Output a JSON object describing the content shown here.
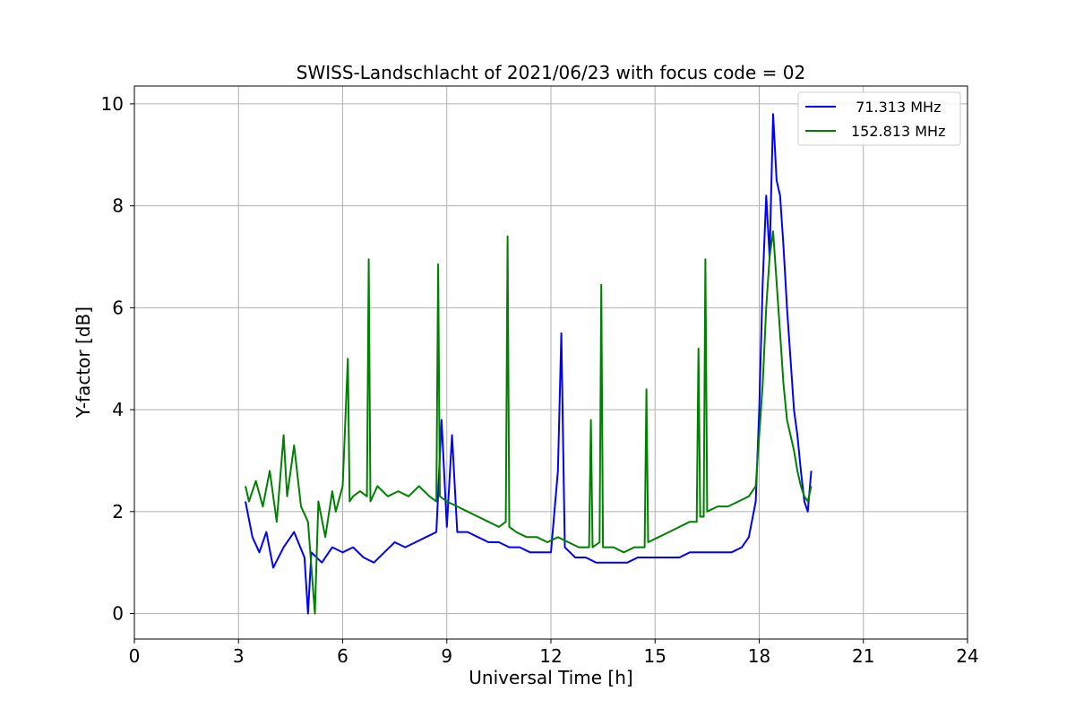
{
  "chart_data": {
    "type": "line",
    "title": "SWISS-Landschlacht of 2021/06/23 with focus code = 02",
    "xlabel": "Universal Time [h]",
    "ylabel": "Y-factor [dB]",
    "xlim": [
      0,
      24
    ],
    "ylim": [
      -0.5,
      10.35
    ],
    "xticks": [
      0,
      3,
      6,
      9,
      12,
      15,
      18,
      21,
      24
    ],
    "yticks": [
      0,
      2,
      4,
      6,
      8,
      10
    ],
    "grid": true,
    "legend_position": "top-right",
    "series": [
      {
        "name": "  71.313 MHz",
        "color": "#0000ff",
        "x": [
          3.2,
          3.4,
          3.6,
          3.8,
          4.0,
          4.3,
          4.6,
          4.9,
          5.0,
          5.1,
          5.4,
          5.7,
          6.0,
          6.3,
          6.6,
          6.9,
          7.2,
          7.5,
          7.8,
          8.1,
          8.4,
          8.7,
          8.85,
          9.0,
          9.15,
          9.3,
          9.6,
          9.9,
          10.2,
          10.5,
          10.8,
          11.1,
          11.4,
          11.7,
          12.0,
          12.2,
          12.3,
          12.4,
          12.7,
          13.0,
          13.3,
          13.6,
          13.9,
          14.2,
          14.5,
          14.8,
          15.1,
          15.4,
          15.7,
          16.0,
          16.3,
          16.6,
          16.9,
          17.2,
          17.5,
          17.7,
          17.9,
          18.0,
          18.1,
          18.2,
          18.3,
          18.4,
          18.5,
          18.6,
          18.7,
          18.8,
          18.9,
          19.0,
          19.1,
          19.2,
          19.3,
          19.4,
          19.5
        ],
        "y": [
          2.2,
          1.5,
          1.2,
          1.6,
          0.9,
          1.3,
          1.6,
          1.1,
          0.0,
          1.2,
          1.0,
          1.3,
          1.2,
          1.3,
          1.1,
          1.0,
          1.2,
          1.4,
          1.3,
          1.4,
          1.5,
          1.6,
          3.8,
          1.7,
          3.5,
          1.6,
          1.6,
          1.5,
          1.4,
          1.4,
          1.3,
          1.3,
          1.2,
          1.2,
          1.2,
          2.8,
          5.5,
          1.3,
          1.1,
          1.1,
          1.0,
          1.0,
          1.0,
          1.0,
          1.1,
          1.1,
          1.1,
          1.1,
          1.1,
          1.2,
          1.2,
          1.2,
          1.2,
          1.2,
          1.3,
          1.5,
          2.2,
          4.0,
          6.5,
          8.2,
          7.0,
          9.8,
          8.5,
          8.2,
          7.2,
          6.0,
          5.0,
          4.0,
          3.5,
          2.8,
          2.2,
          2.0,
          2.8
        ]
      },
      {
        "name": "152.813 MHz",
        "color": "#008000",
        "x": [
          3.2,
          3.3,
          3.5,
          3.7,
          3.9,
          4.1,
          4.3,
          4.4,
          4.6,
          4.8,
          5.0,
          5.2,
          5.3,
          5.5,
          5.7,
          5.8,
          6.0,
          6.15,
          6.2,
          6.3,
          6.5,
          6.7,
          6.75,
          6.8,
          7.0,
          7.3,
          7.6,
          7.9,
          8.2,
          8.5,
          8.7,
          8.75,
          8.8,
          9.0,
          9.3,
          9.6,
          9.9,
          10.2,
          10.5,
          10.7,
          10.75,
          10.8,
          11.0,
          11.3,
          11.6,
          11.9,
          12.2,
          12.5,
          12.8,
          13.1,
          13.15,
          13.2,
          13.4,
          13.45,
          13.5,
          13.8,
          14.1,
          14.4,
          14.7,
          14.75,
          14.8,
          15.1,
          15.4,
          15.7,
          16.0,
          16.2,
          16.25,
          16.3,
          16.4,
          16.45,
          16.5,
          16.8,
          17.1,
          17.4,
          17.7,
          17.9,
          18.0,
          18.1,
          18.2,
          18.3,
          18.4,
          18.5,
          18.6,
          18.7,
          18.8,
          18.9,
          19.0,
          19.1,
          19.2,
          19.3,
          19.4,
          19.5
        ],
        "y": [
          2.5,
          2.2,
          2.6,
          2.1,
          2.8,
          1.8,
          3.5,
          2.3,
          3.3,
          2.1,
          1.8,
          0.0,
          2.2,
          1.5,
          2.4,
          2.0,
          2.5,
          5.0,
          2.2,
          2.3,
          2.4,
          2.3,
          6.95,
          2.2,
          2.5,
          2.3,
          2.4,
          2.3,
          2.5,
          2.3,
          2.2,
          6.85,
          2.3,
          2.2,
          2.1,
          2.0,
          1.9,
          1.8,
          1.7,
          1.8,
          7.4,
          1.7,
          1.6,
          1.5,
          1.5,
          1.4,
          1.5,
          1.4,
          1.3,
          1.3,
          3.8,
          1.3,
          1.4,
          6.45,
          1.3,
          1.3,
          1.2,
          1.3,
          1.3,
          4.4,
          1.4,
          1.5,
          1.6,
          1.7,
          1.8,
          1.8,
          5.2,
          1.9,
          1.9,
          6.95,
          2.0,
          2.1,
          2.1,
          2.2,
          2.3,
          2.5,
          3.5,
          4.5,
          6.0,
          7.0,
          7.5,
          6.5,
          5.5,
          4.5,
          3.8,
          3.5,
          3.2,
          2.8,
          2.5,
          2.3,
          2.2,
          2.5
        ]
      }
    ]
  }
}
